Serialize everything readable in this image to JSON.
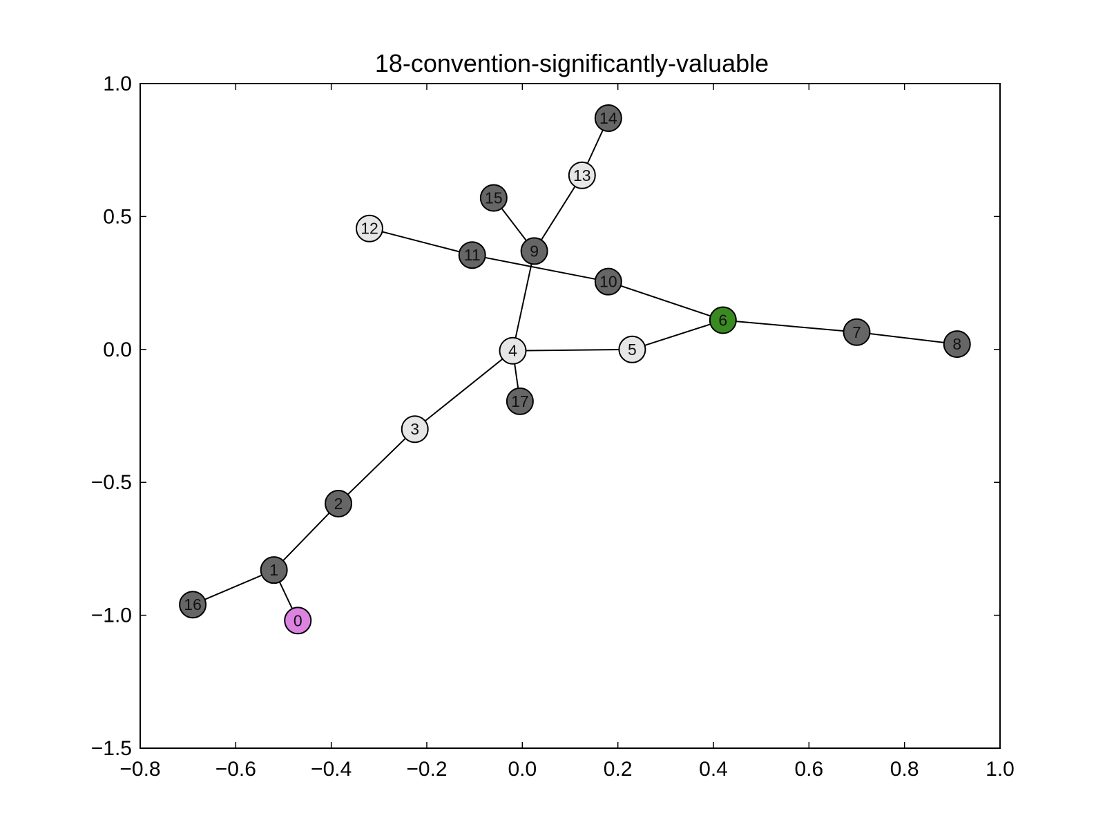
{
  "chart_data": {
    "type": "network",
    "title": "18-convention-significantly-valuable",
    "xlabel": "",
    "ylabel": "",
    "xlim": [
      -0.8,
      1.0
    ],
    "ylim": [
      -1.5,
      1.0
    ],
    "xticks": [
      -0.8,
      -0.6,
      -0.4,
      -0.2,
      0.0,
      0.2,
      0.4,
      0.6,
      0.8,
      1.0
    ],
    "yticks": [
      -1.5,
      -1.0,
      -0.5,
      0.0,
      0.5,
      1.0
    ],
    "xtick_labels": [
      "−0.8",
      "−0.6",
      "−0.4",
      "−0.2",
      "0.0",
      "0.2",
      "0.4",
      "0.6",
      "0.8",
      "1.0"
    ],
    "ytick_labels": [
      "−1.5",
      "−1.0",
      "−0.5",
      "0.0",
      "0.5",
      "1.0"
    ],
    "grid": false,
    "colors": {
      "dark": "#666666",
      "light": "#e6e6e6",
      "green": "#3a8a22",
      "violet": "#dc82e0",
      "edge": "#000000"
    },
    "nodes": [
      {
        "id": "0",
        "x": -0.47,
        "y": -1.02,
        "color": "violet"
      },
      {
        "id": "1",
        "x": -0.52,
        "y": -0.83,
        "color": "dark"
      },
      {
        "id": "2",
        "x": -0.385,
        "y": -0.58,
        "color": "dark"
      },
      {
        "id": "3",
        "x": -0.225,
        "y": -0.3,
        "color": "light"
      },
      {
        "id": "4",
        "x": -0.02,
        "y": -0.005,
        "color": "light"
      },
      {
        "id": "5",
        "x": 0.23,
        "y": 0.0,
        "color": "light"
      },
      {
        "id": "6",
        "x": 0.42,
        "y": 0.11,
        "color": "green"
      },
      {
        "id": "7",
        "x": 0.7,
        "y": 0.065,
        "color": "dark"
      },
      {
        "id": "8",
        "x": 0.91,
        "y": 0.02,
        "color": "dark"
      },
      {
        "id": "9",
        "x": 0.025,
        "y": 0.37,
        "color": "dark"
      },
      {
        "id": "10",
        "x": 0.18,
        "y": 0.255,
        "color": "dark"
      },
      {
        "id": "11",
        "x": -0.105,
        "y": 0.355,
        "color": "dark"
      },
      {
        "id": "12",
        "x": -0.32,
        "y": 0.455,
        "color": "light"
      },
      {
        "id": "13",
        "x": 0.125,
        "y": 0.655,
        "color": "light"
      },
      {
        "id": "14",
        "x": 0.18,
        "y": 0.87,
        "color": "dark"
      },
      {
        "id": "15",
        "x": -0.06,
        "y": 0.57,
        "color": "dark"
      },
      {
        "id": "16",
        "x": -0.69,
        "y": -0.96,
        "color": "dark"
      },
      {
        "id": "17",
        "x": -0.005,
        "y": -0.195,
        "color": "dark"
      }
    ],
    "edges": [
      [
        "0",
        "1"
      ],
      [
        "1",
        "16"
      ],
      [
        "1",
        "2"
      ],
      [
        "2",
        "3"
      ],
      [
        "3",
        "4"
      ],
      [
        "4",
        "17"
      ],
      [
        "4",
        "5"
      ],
      [
        "4",
        "9"
      ],
      [
        "5",
        "6"
      ],
      [
        "6",
        "7"
      ],
      [
        "7",
        "8"
      ],
      [
        "6",
        "10"
      ],
      [
        "10",
        "11"
      ],
      [
        "11",
        "12"
      ],
      [
        "9",
        "15"
      ],
      [
        "9",
        "13"
      ],
      [
        "13",
        "14"
      ]
    ]
  }
}
